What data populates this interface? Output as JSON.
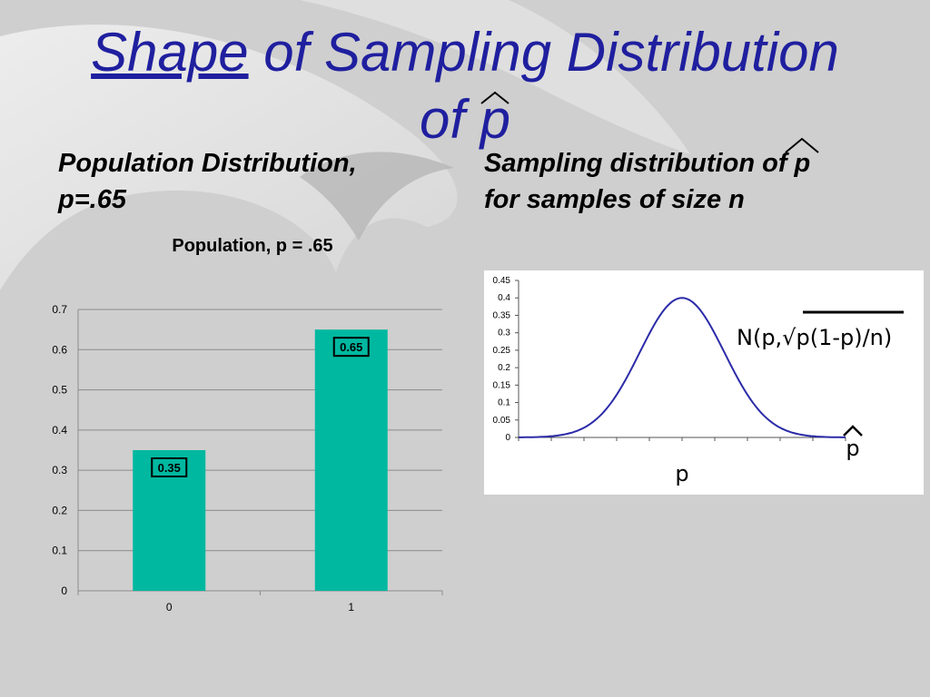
{
  "slide": {
    "title_word1": "Shape",
    "title_rest": "of Sampling Distribution",
    "title_line2_prefix": "of",
    "title_var": "p"
  },
  "left_heading": {
    "line1": "Population Distribution,",
    "line2": "p=.65"
  },
  "right_heading": {
    "line1_prefix": "Sampling distribution of",
    "line1_var": "p",
    "line2": "for samples of size n"
  },
  "chart_data": [
    {
      "type": "bar",
      "title": "Population, p = .65",
      "categories": [
        "0",
        "1"
      ],
      "values": [
        0.35,
        0.65
      ],
      "data_labels": [
        "0.35",
        "0.65"
      ],
      "ylim": [
        0,
        0.7
      ],
      "yticks": [
        "0",
        "0.1",
        "0.2",
        "0.3",
        "0.4",
        "0.5",
        "0.6",
        "0.7"
      ],
      "grid": true,
      "bar_color": "#00b8a0"
    },
    {
      "type": "line",
      "x_label": "p",
      "curve_end_label": "p",
      "annotation": "N(p,√p(1-p)/n)",
      "ylim": [
        0,
        0.45
      ],
      "yticks": [
        "0",
        "0.05",
        "0.1",
        "0.15",
        "0.2",
        "0.25",
        "0.3",
        "0.35",
        "0.4",
        "0.45"
      ],
      "peak": 0.4,
      "line_color": "#2b2ba8"
    }
  ]
}
